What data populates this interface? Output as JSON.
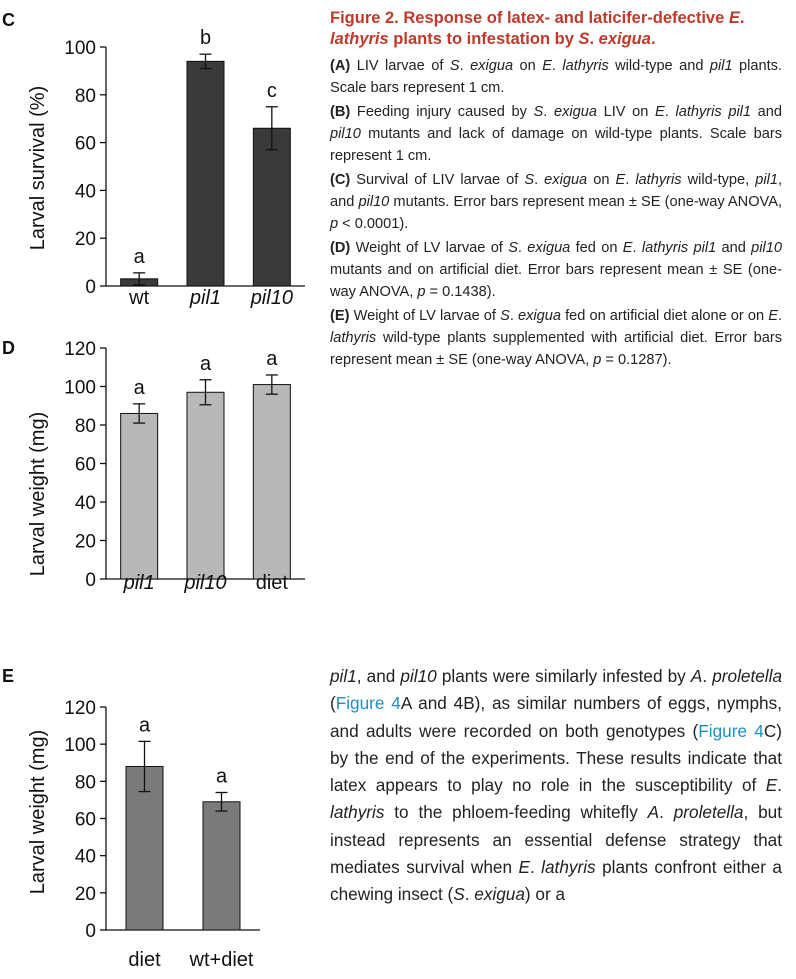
{
  "figure": {
    "title_parts": [
      "Figure 2. Response of latex- and laticifer-defective ",
      "E",
      ". ",
      "lathyris",
      " plants to infestation by ",
      "S",
      ". ",
      "exigua",
      "."
    ],
    "captions": [
      {
        "tag": "(A)",
        "parts": [
          " LIV larvae of ",
          "S",
          ". ",
          "exigua",
          " on ",
          "E",
          ". ",
          "lathyris",
          " wild-type and ",
          "pil1",
          " plants. Scale bars represent 1 cm."
        ]
      },
      {
        "tag": "(B)",
        "parts": [
          " Feeding injury caused by ",
          "S",
          ". ",
          "exigua",
          " LIV on ",
          "E",
          ". ",
          "lathyris pil1",
          " and ",
          "pil10",
          " mutants and lack of damage on wild-type plants. Scale bars represent 1 cm."
        ]
      },
      {
        "tag": "(C)",
        "parts": [
          " Survival of LIV larvae of ",
          "S",
          ". ",
          "exigua",
          " on ",
          "E",
          ". ",
          "lathyris",
          " wild-type, ",
          "pil1",
          ", and ",
          "pil10",
          " mutants. Error bars represent mean ± SE (one-way ANOVA, ",
          "p",
          " < 0.0001)."
        ]
      },
      {
        "tag": "(D)",
        "parts": [
          " Weight of LV larvae of ",
          "S",
          ". ",
          "exigua",
          " fed on ",
          "E",
          ". ",
          "lathyris",
          " ",
          "pil1",
          " and ",
          "pil10",
          " mutants and on artificial diet. Error bars represent mean ± SE (one-way ANOVA, ",
          "p",
          " = 0.1438)."
        ]
      },
      {
        "tag": "(E)",
        "parts": [
          " Weight of LV larvae of ",
          "S",
          ". ",
          "exigua",
          " fed on artificial diet alone or on ",
          "E",
          ". ",
          "lathyris",
          " wild-type plants supplemented with artificial diet. Error bars represent mean ± SE (one-way ANOVA, ",
          "p",
          " = 0.1287)."
        ]
      }
    ]
  },
  "body_parts": [
    "pil1",
    ", and ",
    "pil10",
    " plants were similarly infested by ",
    "A",
    ". ",
    "proletella",
    " (",
    "Figure 4",
    "A and 4B), as similar numbers of eggs, nymphs, and adults were recorded on both genotypes (",
    "Figure 4",
    "C) by the end of the experiments. These results indicate that latex appears to play no role in the susceptibility of ",
    "E",
    ". ",
    "lathyris",
    " to the phloem-feeding whitefly ",
    "A",
    ". ",
    "proletella",
    ", but instead represents an essential defense strategy that mediates survival when ",
    "E",
    ". ",
    "lathyris",
    " plants confront either a chewing insect (",
    "S",
    ". ",
    "exigua",
    ") or a"
  ],
  "colors": {
    "title_red": "#c0392b",
    "link_blue": "#1f8fc4",
    "bar_dark": "#3a3a3a",
    "bar_light": "#b8b8b8",
    "bar_mid": "#7a7a7a"
  },
  "chart_data": [
    {
      "panel": "C",
      "type": "bar",
      "ylabel": "Larval survival (%)",
      "ylim": [
        0,
        100
      ],
      "yticks": [
        0,
        20,
        40,
        60,
        80,
        100
      ],
      "categories": [
        "wt",
        "pil1",
        "pil10"
      ],
      "values": [
        3,
        94,
        66
      ],
      "errors": [
        2.5,
        3,
        9
      ],
      "letters": [
        "a",
        "b",
        "c"
      ],
      "bar_color": "#3a3a3a"
    },
    {
      "panel": "D",
      "type": "bar",
      "ylabel": "Larval weight (mg)",
      "ylim": [
        0,
        120
      ],
      "yticks": [
        0,
        20,
        40,
        60,
        80,
        100,
        120
      ],
      "categories": [
        "pil1",
        "pil10",
        "diet"
      ],
      "values": [
        86,
        97,
        101
      ],
      "errors": [
        5,
        6.5,
        5
      ],
      "letters": [
        "a",
        "a",
        "a"
      ],
      "bar_color": "#b8b8b8"
    },
    {
      "panel": "E",
      "type": "bar",
      "ylabel": "Larval weight (mg)",
      "ylim": [
        0,
        120
      ],
      "yticks": [
        0,
        20,
        40,
        60,
        80,
        100,
        120
      ],
      "categories": [
        "diet",
        "wt+diet"
      ],
      "values": [
        88,
        69
      ],
      "errors": [
        13.5,
        5
      ],
      "letters": [
        "a",
        "a"
      ],
      "bar_color": "#7a7a7a"
    }
  ]
}
